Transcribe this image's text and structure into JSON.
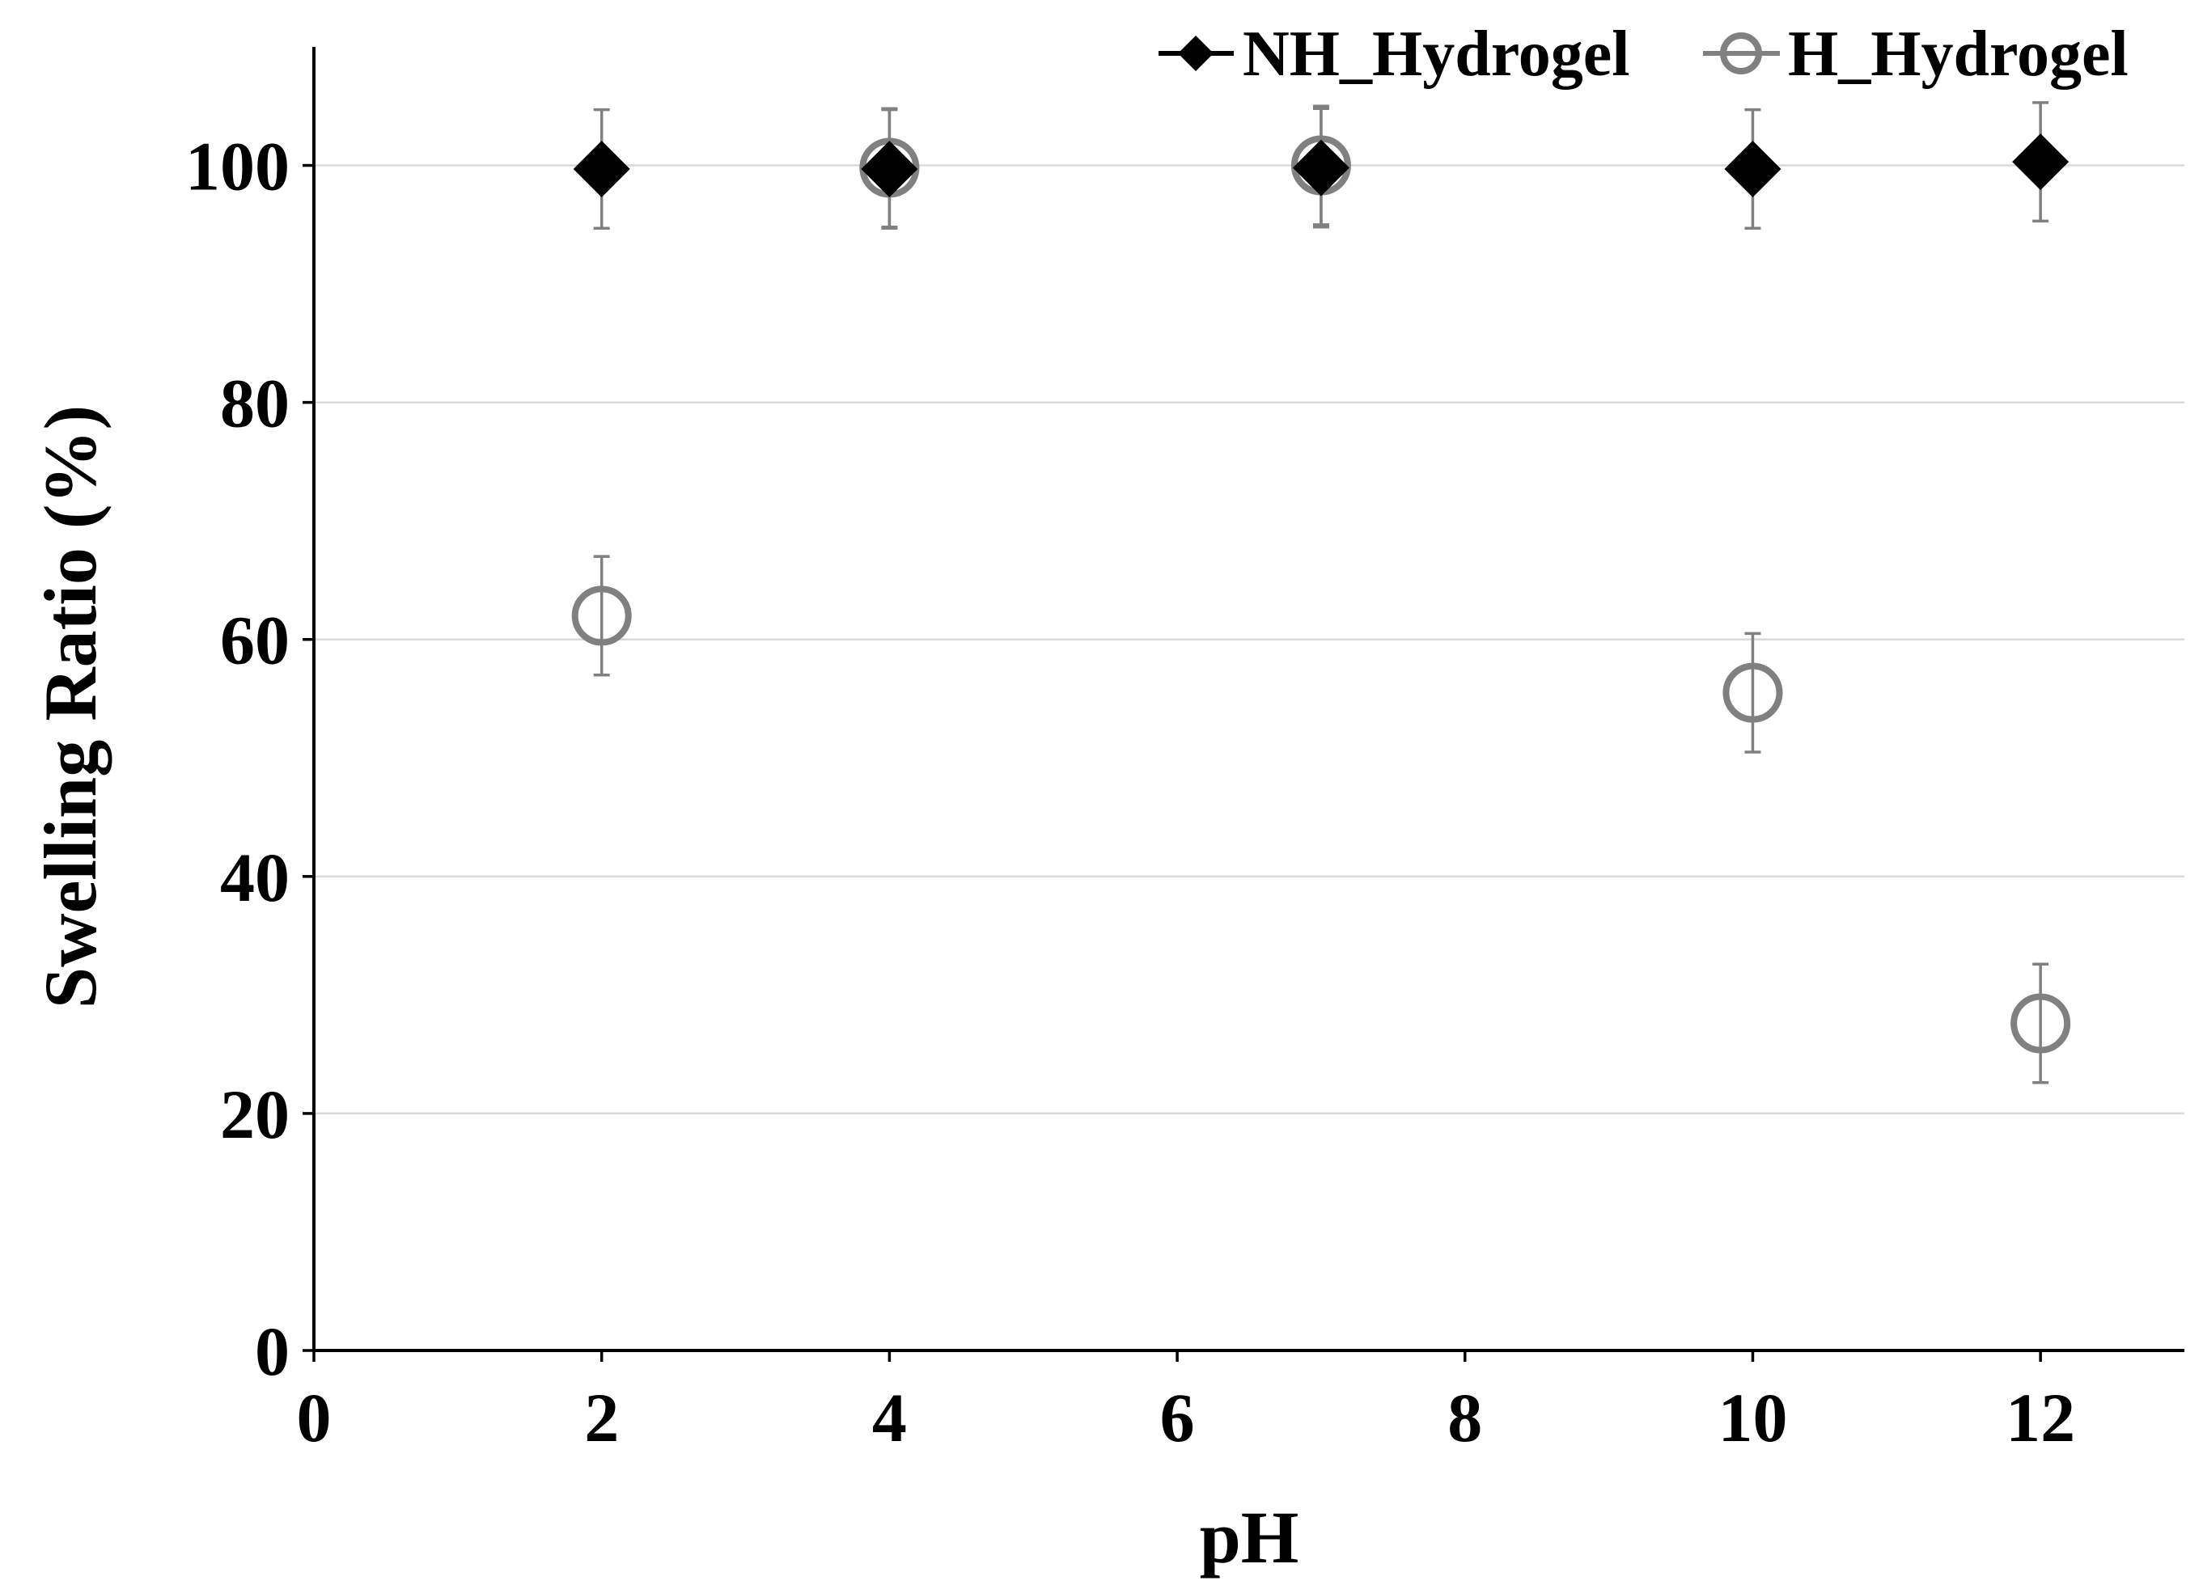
{
  "chart_data": {
    "type": "scatter",
    "title": "",
    "xlabel": "pH",
    "ylabel": "Swelling Ratio (%)",
    "xlim": [
      0,
      13
    ],
    "ylim": [
      0,
      110
    ],
    "x_ticks": [
      "0",
      "2",
      "4",
      "6",
      "8",
      "10",
      "12"
    ],
    "y_ticks": [
      "0",
      "20",
      "40",
      "60",
      "80",
      "100"
    ],
    "grid": "horizontal",
    "legend_position": "top-right",
    "series": [
      {
        "name": "NH_Hydrogel",
        "marker": "diamond-filled",
        "color": "#000000",
        "error_color": "#808080",
        "points": [
          {
            "x": 2,
            "y": 99.7,
            "err": 5
          },
          {
            "x": 4,
            "y": 99.7,
            "err": 5
          },
          {
            "x": 7,
            "y": 99.8,
            "err": 5
          },
          {
            "x": 10,
            "y": 99.7,
            "err": 5
          },
          {
            "x": 12,
            "y": 100.3,
            "err": 5
          }
        ]
      },
      {
        "name": "H_Hydrogel",
        "marker": "circle-open",
        "color": "#808080",
        "error_color": "#808080",
        "points": [
          {
            "x": 2,
            "y": 62,
            "err": 5
          },
          {
            "x": 4,
            "y": 99.8,
            "err": 5
          },
          {
            "x": 7,
            "y": 100,
            "err": 5
          },
          {
            "x": 10,
            "y": 55.5,
            "err": 5
          },
          {
            "x": 12,
            "y": 27.6,
            "err": 5
          }
        ]
      }
    ]
  }
}
